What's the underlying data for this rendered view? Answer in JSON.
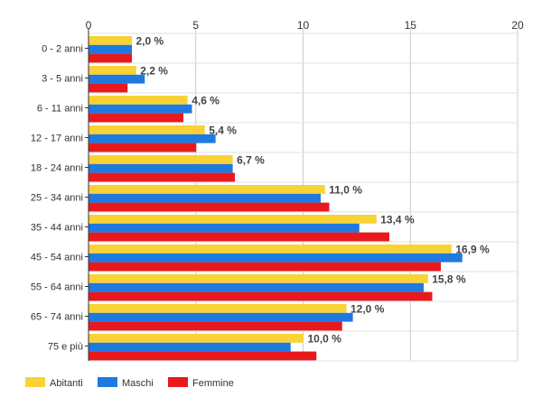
{
  "chart_data": {
    "type": "bar",
    "orientation": "horizontal",
    "title": "",
    "xlabel": "",
    "ylabel": "",
    "xlim": [
      0,
      20
    ],
    "x_ticks": [
      0,
      5,
      10,
      15,
      20
    ],
    "grid": true,
    "legend_position": "bottom-left",
    "categories": [
      "0 - 2 anni",
      "3 - 5 anni",
      "6 - 11 anni",
      "12 - 17 anni",
      "18 - 24 anni",
      "25 - 34 anni",
      "35 - 44 anni",
      "45 - 54 anni",
      "55 - 64 anni",
      "65 - 74 anni",
      "75 e più"
    ],
    "series": [
      {
        "name": "Abitanti",
        "color": "#f9d236",
        "values": [
          2.0,
          2.2,
          4.6,
          5.4,
          6.7,
          11.0,
          13.4,
          16.9,
          15.8,
          12.0,
          10.0
        ]
      },
      {
        "name": "Maschi",
        "color": "#1e7ae0",
        "values": [
          2.0,
          2.6,
          4.8,
          5.9,
          6.7,
          10.8,
          12.6,
          17.4,
          15.6,
          12.3,
          9.4
        ]
      },
      {
        "name": "Femmine",
        "color": "#e8191c",
        "values": [
          2.0,
          1.8,
          4.4,
          5.0,
          6.8,
          11.2,
          14.0,
          16.4,
          16.0,
          11.8,
          10.6
        ]
      }
    ],
    "data_labels": [
      "2,0 %",
      "2,2 %",
      "4,6 %",
      "5,4 %",
      "6,7 %",
      "11,0 %",
      "13,4 %",
      "16,9 %",
      "15,8 %",
      "12,0 %",
      "10,0 %"
    ]
  }
}
